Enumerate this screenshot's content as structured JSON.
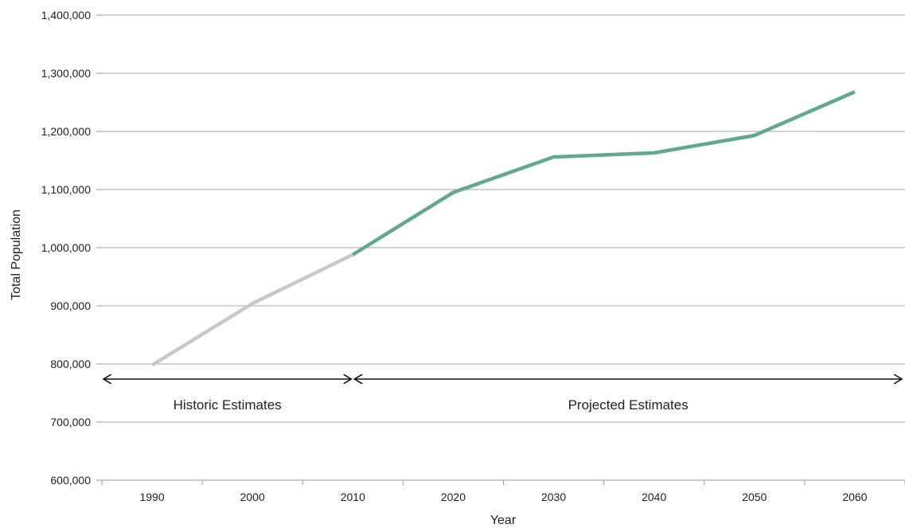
{
  "chart_data": {
    "type": "line",
    "title": "",
    "xlabel": "Year",
    "ylabel": "Total Population",
    "categories": [
      "1990",
      "2000",
      "2010",
      "2020",
      "2030",
      "2040",
      "2050",
      "2060"
    ],
    "ylim": [
      600000,
      1400000
    ],
    "yticks": [
      600000,
      700000,
      800000,
      900000,
      1000000,
      1100000,
      1200000,
      1300000,
      1400000
    ],
    "ytick_labels": [
      "600,000",
      "700,000",
      "800,000",
      "900,000",
      "1,000,000",
      "1,100,000",
      "1,200,000",
      "1,300,000",
      "1,400,000"
    ],
    "grid": true,
    "series": [
      {
        "color": "#c8c8c8",
        "x": [
          "1990",
          "2000",
          "2010"
        ],
        "values": [
          798000,
          904000,
          988000
        ]
      },
      {
        "color": "#62a88c",
        "x": [
          "2010",
          "2020",
          "2030",
          "2040",
          "2050",
          "2060"
        ],
        "values": [
          988000,
          1095000,
          1156000,
          1163000,
          1193000,
          1268000
        ]
      }
    ],
    "annotations": [
      {
        "text": "Historic Estimates",
        "from": "1990",
        "to": "2010"
      },
      {
        "text": "Projected Estimates",
        "from": "2010",
        "to": "2060"
      }
    ]
  }
}
